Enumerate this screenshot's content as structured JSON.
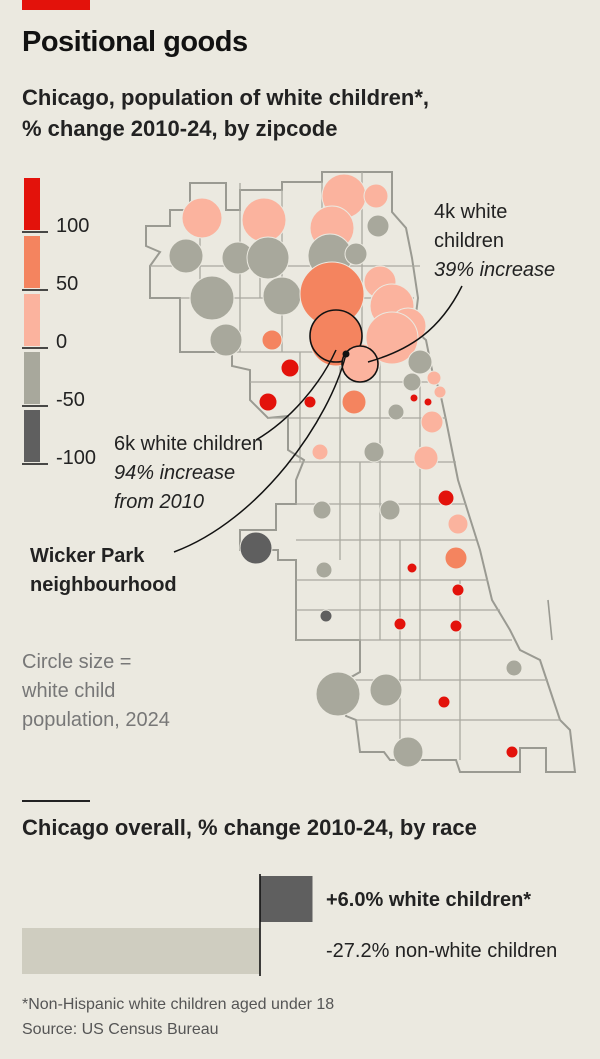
{
  "header": {
    "title": "Positional goods",
    "subtitle_line1": "Chicago, population of white children*,",
    "subtitle_line2": "% change 2010-24, by zipcode"
  },
  "legend": {
    "ticks": [
      "100",
      "50",
      "0",
      "-50",
      "-100"
    ],
    "colors": [
      "#e3120b",
      "#f4845f",
      "#fbb39e",
      "#a8a89c",
      "#5f5f5f"
    ],
    "size_note": [
      "Circle size =",
      "white child",
      "population, 2024"
    ]
  },
  "annotations": {
    "a1": {
      "line1": "4k white",
      "line2": "children",
      "line3": "39% increase"
    },
    "a2": {
      "line1": "6k white children",
      "line2": "94% increase",
      "line3": "from 2010"
    },
    "a3": {
      "line1": "Wicker Park",
      "line2": "neighbourhood"
    }
  },
  "chart_data": [
    {
      "type": "scatter",
      "title": "Chicago, population of white children*, % change 2010-24, by zipcode",
      "color_scale": {
        "min": -100,
        "max": 100,
        "ticks": [
          100,
          50,
          0,
          -50,
          -100
        ]
      },
      "note": "Circle size = white child population, 2024",
      "highlighted": [
        {
          "white_children_2024": "6k",
          "pct_change": 94
        },
        {
          "white_children_2024": "4k",
          "pct_change": 39
        }
      ]
    },
    {
      "type": "bar",
      "title": "Chicago overall, % change 2010-24, by race",
      "categories": [
        "white children*",
        "non-white children"
      ],
      "values": [
        6.0,
        -27.2
      ],
      "labels": [
        "+6.0% white children*",
        "-27.2% non-white children"
      ],
      "colors": [
        "#5f5f5f",
        "#cfcdc0"
      ]
    }
  ],
  "bars_title": "Chicago overall, % change 2010-24, by race",
  "footnote": {
    "line1": "*Non-Hispanic white children aged under 18",
    "line2": "Source: US Census Bureau"
  }
}
